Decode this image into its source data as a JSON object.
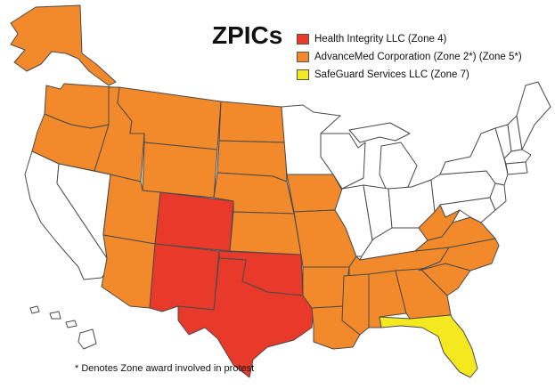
{
  "title": "ZPICs",
  "legend": [
    {
      "label": "Health Integrity LLC (Zone 4)",
      "color": "#e8392a"
    },
    {
      "label": "AdvanceMed Corporation (Zone 2*) (Zone 5*)",
      "color": "#f28a2b"
    },
    {
      "label": "SafeGuard Services LLC (Zone 7)",
      "color": "#f4e81e"
    }
  ],
  "footnote": "* Denotes Zone award involved in protest",
  "colors": {
    "zone4": "#e8392a",
    "zone2_5": "#f28a2b",
    "zone7": "#f4e81e",
    "other": "#ffffff",
    "border": "#4a4a4a"
  },
  "states": {
    "zone4": [
      "CO",
      "NM",
      "TX",
      "OK"
    ],
    "zone2_5": [
      "AK",
      "WA",
      "OR",
      "ID",
      "MT",
      "WY",
      "UT",
      "AZ",
      "ND",
      "SD",
      "NE",
      "KS",
      "IA",
      "MO",
      "AR",
      "LA",
      "MS",
      "AL",
      "GA",
      "SC",
      "NC",
      "VA",
      "WV",
      "TN"
    ],
    "zone7": [
      "FL"
    ]
  }
}
